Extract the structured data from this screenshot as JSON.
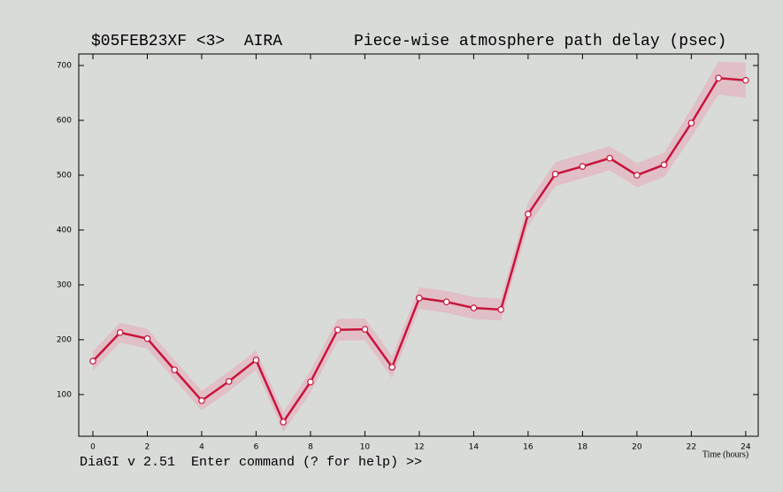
{
  "chart_data": {
    "type": "line",
    "title": "$05FEB23XF <3>  AIRA",
    "subtitle": "Piece-wise atmosphere path delay (psec)",
    "x_label": "Time (hours)",
    "prompt": "DiaGI v 2.51  Enter command (? for help) >>",
    "x": [
      0,
      1,
      2,
      3,
      4,
      5,
      6,
      7,
      8,
      9,
      10,
      11,
      12,
      13,
      14,
      15,
      16,
      17,
      18,
      19,
      20,
      21,
      22,
      23,
      24
    ],
    "series": [
      {
        "color": "#c8143c",
        "values": [
          161,
          213,
          202,
          145,
          89,
          124,
          163,
          50,
          123,
          218,
          219,
          150,
          276,
          269,
          258,
          255,
          429,
          502,
          516,
          531,
          500,
          519,
          595,
          677,
          673
        ],
        "errors": [
          18,
          18,
          18,
          18,
          18,
          18,
          18,
          18,
          20,
          20,
          20,
          20,
          20,
          20,
          20,
          20,
          22,
          22,
          22,
          22,
          22,
          22,
          26,
          30,
          32
        ]
      }
    ],
    "xlim": [
      -0.52,
      24.46
    ],
    "ylim": [
      24,
      721
    ],
    "xticks": [
      0,
      2,
      4,
      6,
      8,
      10,
      12,
      14,
      16,
      18,
      20,
      22,
      24
    ],
    "yticks": [
      100,
      200,
      300,
      400,
      500,
      600,
      700
    ]
  }
}
